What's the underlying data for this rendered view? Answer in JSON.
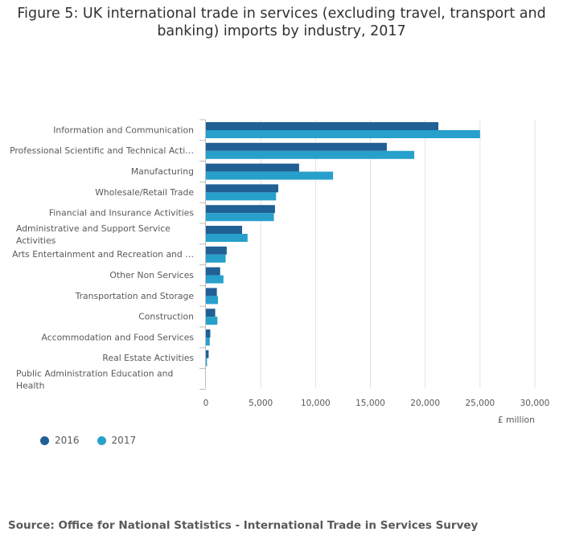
{
  "title": "Figure 5: UK international trade in services (excluding travel, transport and banking) imports by industry, 2017",
  "source": "Source: Office for National Statistics - International Trade in Services Survey",
  "colors": {
    "s2016": "#206095",
    "s2017": "#27a0cc",
    "grid": "#e2e2e3",
    "axis": "#bcbcbd"
  },
  "chart_data": {
    "type": "bar",
    "orientation": "horizontal",
    "title": "Figure 5: UK international trade in services (excluding travel, transport and banking) imports by industry, 2017",
    "xlabel": "£ million",
    "ylabel": "",
    "xlim": [
      0,
      30000
    ],
    "ticks": [
      0,
      5000,
      10000,
      15000,
      20000,
      25000,
      30000
    ],
    "tick_labels": [
      "0",
      "5,000",
      "10,000",
      "15,000",
      "20,000",
      "25,000",
      "30,000"
    ],
    "grid": true,
    "legend_position": "bottom-left",
    "categories": [
      [
        "Information and Communication"
      ],
      [
        "Professional Scientific and Technical Acti…"
      ],
      [
        "Manufacturing"
      ],
      [
        "Wholesale/Retail Trade"
      ],
      [
        "Financial and Insurance Activities"
      ],
      [
        "Administrative and Support Service",
        "Activities"
      ],
      [
        "Arts Entertainment and Recreation and …"
      ],
      [
        "Other Non Services"
      ],
      [
        "Transportation and Storage"
      ],
      [
        "Construction"
      ],
      [
        "Accommodation and Food Services"
      ],
      [
        "Real Estate Activities"
      ],
      [
        "Public Administration Education and",
        "Health"
      ]
    ],
    "series": [
      {
        "name": "2016",
        "values": [
          21200,
          16500,
          8500,
          6600,
          6300,
          3300,
          1900,
          1300,
          1000,
          850,
          400,
          250,
          0
        ]
      },
      {
        "name": "2017",
        "values": [
          25000,
          19000,
          11600,
          6400,
          6200,
          3800,
          1800,
          1600,
          1100,
          1050,
          350,
          100,
          0
        ]
      }
    ]
  }
}
